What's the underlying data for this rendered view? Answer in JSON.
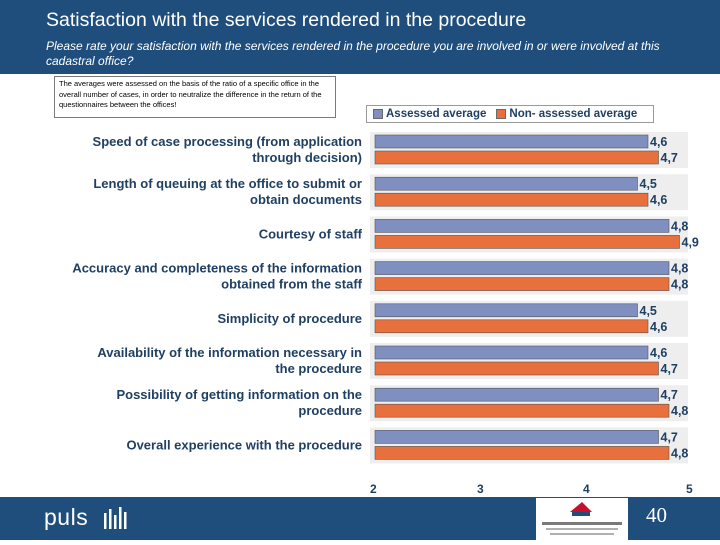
{
  "header": {
    "title": "Satisfaction with the services rendered in the procedure",
    "subtitle": "Please rate your satisfaction with the services rendered in the procedure you are involved in or were involved at this cadastral office?"
  },
  "note": "The averages were assessed on the basis of the ratio of a specific office in the overall number of cases, in order to neutralize the difference in the return of the questionnaires between the offices!",
  "colors": {
    "header_bg": "#1f4e7d",
    "assessed": "#7f8fc0",
    "non_assessed": "#e8703d",
    "label_text": "#1f3f63"
  },
  "chart_data": {
    "type": "bar",
    "orientation": "horizontal",
    "categories": [
      "Speed of case processing (from application through decision)",
      "Length of queuing at the office to submit or obtain documents",
      "Courtesy of staff",
      "Accuracy and completeness of the information obtained from the staff",
      "Simplicity of procedure",
      "Availability of the information necessary in the procedure",
      "Possibility of getting information on the procedure",
      "Overall experience with the procedure"
    ],
    "series": [
      {
        "name": "Assessed average",
        "values": [
          4.6,
          4.5,
          4.8,
          4.8,
          4.5,
          4.6,
          4.7,
          4.7
        ],
        "labels": [
          "4,6",
          "4,5",
          "4,8",
          "4,8",
          "4,5",
          "4,6",
          "4,7",
          "4,7"
        ]
      },
      {
        "name": "Non- assessed average",
        "values": [
          4.7,
          4.6,
          4.9,
          4.8,
          4.6,
          4.7,
          4.8,
          4.8
        ],
        "labels": [
          "4,7",
          "4,6",
          "4,9",
          "4,8",
          "4,6",
          "4,7",
          "4,8",
          "4,8"
        ]
      }
    ],
    "xlim": [
      2,
      5
    ],
    "xticks": [
      "2",
      "3",
      "4",
      "5"
    ],
    "legend_position": "top",
    "grid": false
  },
  "footer": {
    "brand": "puls",
    "page_number": "40"
  }
}
